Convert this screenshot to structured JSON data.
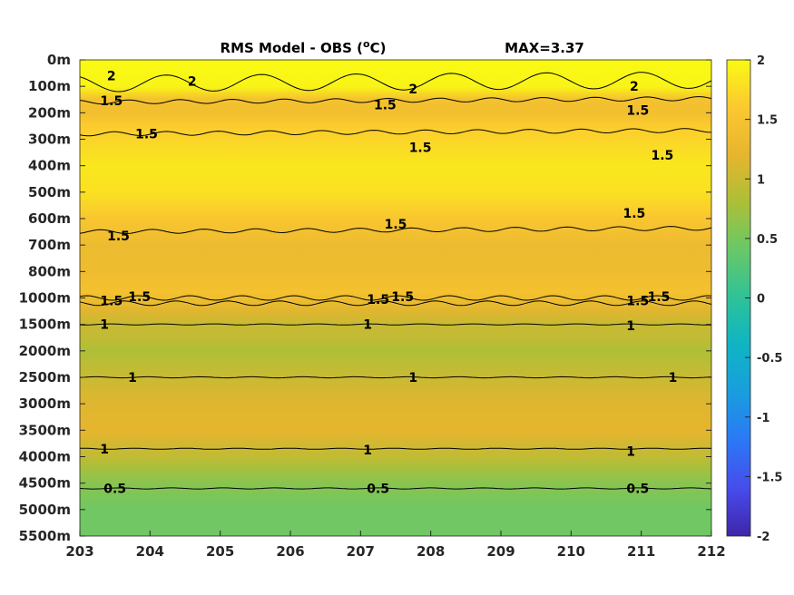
{
  "chart_data": {
    "type": "heatmap",
    "title": "RMS Model - OBS (°C)",
    "title_unit_sup": "o",
    "title_prefix": "RMS Model - OBS (",
    "title_suffix": "C)",
    "max_label": "MAX=3.37",
    "x_ticks": [
      "203",
      "204",
      "205",
      "206",
      "207",
      "208",
      "209",
      "210",
      "211",
      "212"
    ],
    "y_ticks": [
      "0m",
      "100m",
      "200m",
      "300m",
      "400m",
      "500m",
      "600m",
      "700m",
      "800m",
      "1000m",
      "1500m",
      "2000m",
      "2500m",
      "3000m",
      "3500m",
      "4000m",
      "4500m",
      "5000m",
      "5500m"
    ],
    "colorbar": {
      "ticks": [
        "2",
        "1.5",
        "1",
        "0.5",
        "0",
        "-0.5",
        "-1",
        "-1.5",
        "-2"
      ],
      "range": [
        -2,
        2
      ],
      "colormap": "parula"
    },
    "depth_profile": [
      {
        "level": 0,
        "value": 2.0
      },
      {
        "level": 1,
        "value": 1.95
      },
      {
        "level": 1.5,
        "value": 1.45
      },
      {
        "level": 2,
        "value": 1.4
      },
      {
        "level": 2.5,
        "value": 1.62
      },
      {
        "level": 3,
        "value": 1.7
      },
      {
        "level": 4,
        "value": 1.85
      },
      {
        "level": 5,
        "value": 1.8
      },
      {
        "level": 6,
        "value": 1.55
      },
      {
        "level": 7,
        "value": 1.32
      },
      {
        "level": 8,
        "value": 1.35
      },
      {
        "level": 8.8,
        "value": 1.45
      },
      {
        "level": 9.5,
        "value": 1.15
      },
      {
        "level": 10,
        "value": 1.0
      },
      {
        "level": 10.5,
        "value": 0.95
      },
      {
        "level": 11,
        "value": 0.82
      },
      {
        "level": 12,
        "value": 1.0
      },
      {
        "level": 13,
        "value": 1.15
      },
      {
        "level": 14,
        "value": 1.2
      },
      {
        "level": 15,
        "value": 0.95
      },
      {
        "level": 15.5,
        "value": 0.75
      },
      {
        "level": 16,
        "value": 0.6
      },
      {
        "level": 17,
        "value": 0.45
      },
      {
        "level": 18,
        "value": 0.45
      }
    ],
    "contours": [
      {
        "label": "2",
        "level": 0.9
      },
      {
        "label": "1.5",
        "level": 1.6
      },
      {
        "label": "1.5",
        "level": 2.8
      },
      {
        "label": "1.5",
        "level": 6.5
      },
      {
        "label": "1.5",
        "level": 9.0
      },
      {
        "label": "1.5",
        "level": 9.2
      },
      {
        "label": "1",
        "level": 10.0
      },
      {
        "label": "1",
        "level": 12.0
      },
      {
        "label": "1",
        "level": 14.7
      },
      {
        "label": "0.5",
        "level": 16.2
      }
    ],
    "contour_labels": [
      {
        "text": "2",
        "x": 203.45,
        "level": 0.6
      },
      {
        "text": "2",
        "x": 204.6,
        "level": 0.8
      },
      {
        "text": "2",
        "x": 207.75,
        "level": 1.1
      },
      {
        "text": "2",
        "x": 210.9,
        "level": 1.0
      },
      {
        "text": "1.5",
        "x": 203.45,
        "level": 1.55
      },
      {
        "text": "1.5",
        "x": 207.35,
        "level": 1.7
      },
      {
        "text": "1.5",
        "x": 210.95,
        "level": 1.9
      },
      {
        "text": "1.5",
        "x": 203.95,
        "level": 2.8
      },
      {
        "text": "1.5",
        "x": 207.85,
        "level": 3.3
      },
      {
        "text": "1.5",
        "x": 211.3,
        "level": 3.6
      },
      {
        "text": "1.5",
        "x": 203.55,
        "level": 6.65
      },
      {
        "text": "1.5",
        "x": 207.5,
        "level": 6.2
      },
      {
        "text": "1.5",
        "x": 210.9,
        "level": 5.8
      },
      {
        "text": "1.5",
        "x": 203.45,
        "level": 9.1
      },
      {
        "text": "1.5",
        "x": 203.85,
        "level": 8.95
      },
      {
        "text": "1.5",
        "x": 207.25,
        "level": 9.05
      },
      {
        "text": "1.5",
        "x": 207.6,
        "level": 8.95
      },
      {
        "text": "1.5",
        "x": 210.95,
        "level": 9.1
      },
      {
        "text": "1.5",
        "x": 211.25,
        "level": 8.95
      },
      {
        "text": "1",
        "x": 203.35,
        "level": 10.0
      },
      {
        "text": "1",
        "x": 207.1,
        "level": 10.0
      },
      {
        "text": "1",
        "x": 210.85,
        "level": 10.05
      },
      {
        "text": "1",
        "x": 203.75,
        "level": 12.0
      },
      {
        "text": "1",
        "x": 207.75,
        "level": 12.0
      },
      {
        "text": "1",
        "x": 211.45,
        "level": 12.0
      },
      {
        "text": "1",
        "x": 203.35,
        "level": 14.7
      },
      {
        "text": "1",
        "x": 207.1,
        "level": 14.75
      },
      {
        "text": "1",
        "x": 210.85,
        "level": 14.8
      },
      {
        "text": "0.5",
        "x": 203.5,
        "level": 16.2
      },
      {
        "text": "0.5",
        "x": 207.25,
        "level": 16.2
      },
      {
        "text": "0.5",
        "x": 210.95,
        "level": 16.2
      }
    ]
  }
}
